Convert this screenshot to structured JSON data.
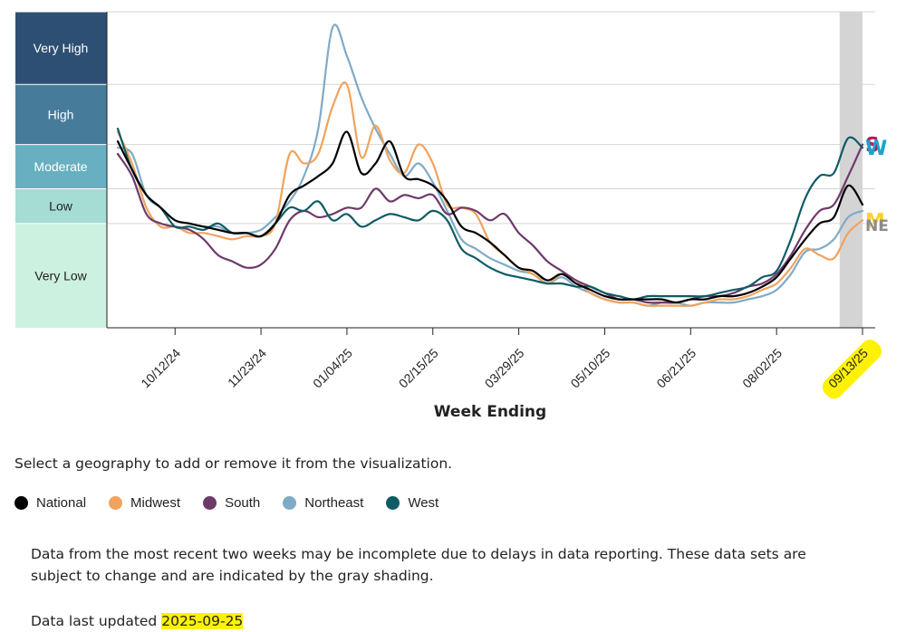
{
  "chart_data": {
    "type": "line",
    "xlabel": "Week Ending",
    "x_ticks": [
      "10/12/24",
      "11/23/24",
      "01/04/25",
      "02/15/25",
      "03/29/25",
      "05/10/25",
      "06/21/25",
      "08/02/25",
      "09/13/25"
    ],
    "highlighted_tick": "09/13/25",
    "x_weeks": [
      "09/14/24",
      "09/21/24",
      "09/28/24",
      "10/05/24",
      "10/12/24",
      "10/19/24",
      "10/26/24",
      "11/02/24",
      "11/09/24",
      "11/16/24",
      "11/23/24",
      "11/30/24",
      "12/07/24",
      "12/14/24",
      "12/21/24",
      "12/28/24",
      "01/04/25",
      "01/11/25",
      "01/18/25",
      "01/25/25",
      "02/01/25",
      "02/08/25",
      "02/15/25",
      "02/22/25",
      "03/01/25",
      "03/08/25",
      "03/15/25",
      "03/22/25",
      "03/29/25",
      "04/05/25",
      "04/12/25",
      "04/19/25",
      "04/26/25",
      "05/03/25",
      "05/10/25",
      "05/17/25",
      "05/24/25",
      "05/31/25",
      "06/07/25",
      "06/14/25",
      "06/21/25",
      "06/28/25",
      "07/05/25",
      "07/12/25",
      "07/19/25",
      "07/26/25",
      "08/02/25",
      "08/09/25",
      "08/16/25",
      "08/23/25",
      "08/30/25",
      "09/06/25",
      "09/13/25"
    ],
    "levels": [
      {
        "name": "Very High",
        "color": "#2d4f73",
        "from": 0.77,
        "to": 1.0
      },
      {
        "name": "High",
        "color": "#467b9a",
        "from": 0.58,
        "to": 0.77
      },
      {
        "name": "Moderate",
        "color": "#68b0c1",
        "from": 0.44,
        "to": 0.58
      },
      {
        "name": "Low",
        "color": "#a5dcd3",
        "from": 0.33,
        "to": 0.44
      },
      {
        "name": "Very Low",
        "color": "#cdf1e0",
        "from": 0.0,
        "to": 0.33
      }
    ],
    "gridlines": [
      0.33,
      0.44,
      0.58,
      0.77,
      1.0
    ],
    "incomplete_weeks": [
      "09/06/25",
      "09/13/25"
    ],
    "incomplete_color": "#d4d4d4",
    "series": [
      {
        "name": "National",
        "color": "#000000",
        "label": "",
        "values": [
          0.59,
          0.5,
          0.42,
          0.38,
          0.34,
          0.33,
          0.32,
          0.31,
          0.3,
          0.3,
          0.29,
          0.33,
          0.42,
          0.45,
          0.48,
          0.52,
          0.62,
          0.49,
          0.52,
          0.59,
          0.48,
          0.47,
          0.45,
          0.4,
          0.32,
          0.3,
          0.27,
          0.23,
          0.19,
          0.18,
          0.15,
          0.17,
          0.14,
          0.12,
          0.1,
          0.09,
          0.09,
          0.09,
          0.09,
          0.08,
          0.09,
          0.09,
          0.1,
          0.1,
          0.11,
          0.13,
          0.16,
          0.22,
          0.28,
          0.33,
          0.35,
          0.45,
          0.39
        ]
      },
      {
        "name": "Midwest",
        "color": "#f0a35e",
        "label": "M",
        "label_color": "#ffd12a",
        "values": [
          0.62,
          0.52,
          0.38,
          0.32,
          0.32,
          0.3,
          0.3,
          0.29,
          0.28,
          0.29,
          0.29,
          0.33,
          0.55,
          0.52,
          0.55,
          0.7,
          0.77,
          0.54,
          0.64,
          0.53,
          0.49,
          0.58,
          0.52,
          0.39,
          0.38,
          0.36,
          0.27,
          0.23,
          0.19,
          0.17,
          0.14,
          0.17,
          0.15,
          0.11,
          0.09,
          0.08,
          0.08,
          0.07,
          0.07,
          0.07,
          0.07,
          0.08,
          0.09,
          0.09,
          0.1,
          0.12,
          0.14,
          0.19,
          0.25,
          0.23,
          0.22,
          0.3,
          0.34
        ]
      },
      {
        "name": "South",
        "color": "#6e3a6a",
        "label": "S",
        "label_color": "#bf1561",
        "values": [
          0.55,
          0.48,
          0.36,
          0.33,
          0.32,
          0.31,
          0.28,
          0.23,
          0.21,
          0.19,
          0.2,
          0.25,
          0.34,
          0.37,
          0.35,
          0.36,
          0.38,
          0.38,
          0.44,
          0.4,
          0.42,
          0.41,
          0.42,
          0.36,
          0.38,
          0.37,
          0.34,
          0.36,
          0.3,
          0.26,
          0.21,
          0.18,
          0.15,
          0.13,
          0.11,
          0.09,
          0.09,
          0.08,
          0.08,
          0.08,
          0.09,
          0.1,
          0.1,
          0.11,
          0.13,
          0.14,
          0.17,
          0.23,
          0.31,
          0.37,
          0.39,
          0.48,
          0.58
        ]
      },
      {
        "name": "Northeast",
        "color": "#7eabc6",
        "label": "NE",
        "label_color": "#8c8c8c",
        "values": [
          0.57,
          0.55,
          0.42,
          0.38,
          0.34,
          0.33,
          0.32,
          0.32,
          0.3,
          0.3,
          0.31,
          0.35,
          0.4,
          0.48,
          0.63,
          0.95,
          0.86,
          0.73,
          0.63,
          0.55,
          0.48,
          0.52,
          0.46,
          0.37,
          0.28,
          0.25,
          0.22,
          0.2,
          0.18,
          0.17,
          0.14,
          0.16,
          0.13,
          0.11,
          0.09,
          0.08,
          0.08,
          0.07,
          0.08,
          0.08,
          0.07,
          0.08,
          0.08,
          0.08,
          0.09,
          0.1,
          0.12,
          0.17,
          0.24,
          0.25,
          0.28,
          0.35,
          0.37
        ]
      },
      {
        "name": "West",
        "color": "#0f5c66",
        "label": "W",
        "label_color": "#1ba5cc",
        "values": [
          0.63,
          0.5,
          0.42,
          0.38,
          0.32,
          0.32,
          0.31,
          0.33,
          0.3,
          0.3,
          0.29,
          0.33,
          0.38,
          0.37,
          0.4,
          0.34,
          0.36,
          0.32,
          0.34,
          0.36,
          0.35,
          0.34,
          0.37,
          0.34,
          0.25,
          0.22,
          0.19,
          0.17,
          0.16,
          0.15,
          0.14,
          0.14,
          0.13,
          0.13,
          0.11,
          0.1,
          0.09,
          0.1,
          0.1,
          0.1,
          0.1,
          0.1,
          0.11,
          0.12,
          0.13,
          0.16,
          0.18,
          0.28,
          0.41,
          0.48,
          0.49,
          0.6,
          0.57
        ]
      }
    ]
  },
  "instruction": "Select a geography to add or remove it from the visualization.",
  "legend": [
    {
      "name": "National",
      "color": "#000000"
    },
    {
      "name": "Midwest",
      "color": "#f0a35e"
    },
    {
      "name": "South",
      "color": "#6e3a6a"
    },
    {
      "name": "Northeast",
      "color": "#7eabc6"
    },
    {
      "name": "West",
      "color": "#0f5c66"
    }
  ],
  "note": "Data from the most recent two weeks may be incomplete due to delays in data reporting. These data sets are subject to change and are indicated by the gray shading.",
  "updated_label": "Data last updated",
  "updated_date": "2025-09-25",
  "highlight_color": "#fff200"
}
